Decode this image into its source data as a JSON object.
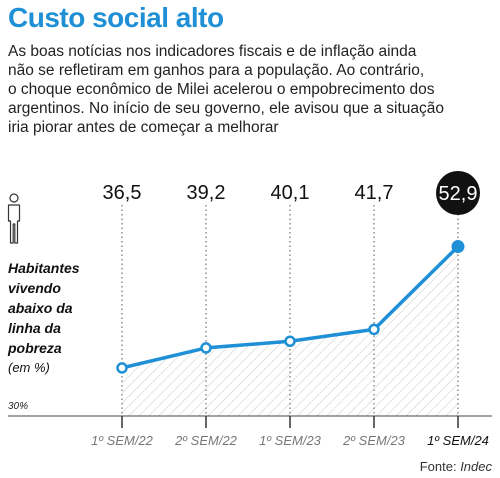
{
  "header": {
    "title": "Custo social alto",
    "subtitle_lines": [
      "As boas notícias nos indicadores fiscais e de inflação ainda",
      "não se refletiram em ganhos para a população. Ao contrário,",
      "o choque econômico de Milei acelerou o empobrecimento dos",
      "argentinos. No início de seu governo, ele avisou que a situação",
      "iria piorar antes de começar a melhorar"
    ]
  },
  "chart_data": {
    "type": "area",
    "title": "",
    "ylabel_lines": [
      "Habitantes",
      "vivendo",
      "abaixo da",
      "linha da",
      "pobreza"
    ],
    "ylabel_unit": "(em %)",
    "y_axis_min_label": "30%",
    "ylim": [
      30,
      55
    ],
    "categories": [
      "1º SEM/22",
      "2º SEM/22",
      "1º SEM/23",
      "2º SEM/23",
      "1º SEM/24"
    ],
    "value_labels": [
      "36,5",
      "39,2",
      "40,1",
      "41,7",
      "52,9"
    ],
    "series": [
      {
        "values": [
          36.5,
          39.2,
          40.1,
          41.7,
          52.9
        ]
      }
    ],
    "highlight_index": 4,
    "colors": {
      "line": "#1f8fd6",
      "marker_fill": "#ffffff",
      "highlight_marker": "#1f8fd6",
      "highlight_badge": "#111111",
      "title": "#1f8fd6"
    }
  },
  "footer": {
    "source_label": "Fonte:",
    "source_name": "Indec"
  }
}
